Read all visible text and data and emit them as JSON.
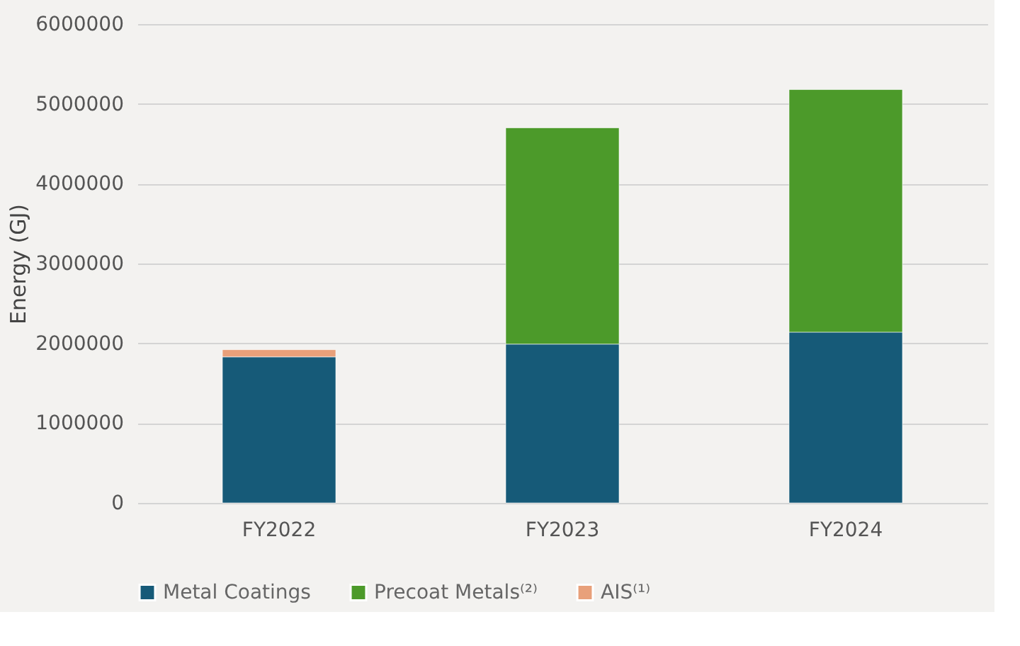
{
  "chart_data": {
    "type": "bar",
    "stacked": true,
    "ylabel": "Energy (GJ)",
    "categories": [
      "FY2022",
      "FY2023",
      "FY2024"
    ],
    "series": [
      {
        "name": "Metal Coatings",
        "color": "#165a78",
        "values": [
          1830000,
          1990000,
          2140000
        ]
      },
      {
        "name": "Precoat Metals⁽²⁾",
        "color": "#4c9a2a",
        "values": [
          null,
          2710000,
          3040000
        ]
      },
      {
        "name": "AIS⁽¹⁾",
        "color": "#e8a07a",
        "values": [
          90000,
          null,
          null
        ]
      }
    ],
    "ylim": [
      0,
      6000000
    ],
    "yticks": [
      0,
      1000000,
      2000000,
      3000000,
      4000000,
      5000000,
      6000000
    ],
    "grid": "y",
    "legend": "bottom"
  }
}
